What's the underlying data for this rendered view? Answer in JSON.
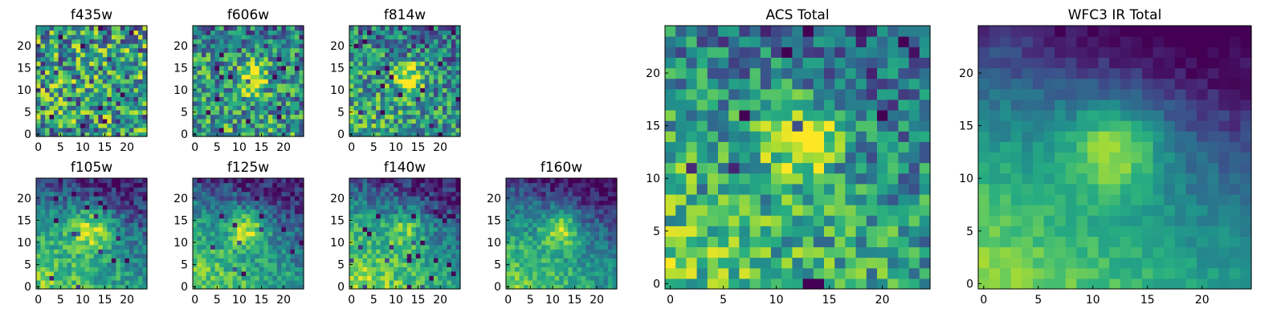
{
  "chart_data": [
    {
      "type": "heatmap",
      "title": "f435w",
      "colormap": "viridis",
      "xlim": [
        0,
        24
      ],
      "ylim": [
        0,
        24
      ],
      "xticks": [
        "0",
        "5",
        "10",
        "15",
        "20"
      ],
      "yticks": [
        "0",
        "5",
        "10",
        "15",
        "20"
      ],
      "grid": false,
      "pattern": {
        "noise": 0.85,
        "blob_amp": 0.0,
        "blob_x": 12,
        "blob_y": 13,
        "blob_r": 4,
        "glow_amp": 0.0,
        "base": 0.55,
        "top_dark": 0.0,
        "seed": 11
      }
    },
    {
      "type": "heatmap",
      "title": "f606w",
      "colormap": "viridis",
      "xlim": [
        0,
        24
      ],
      "ylim": [
        0,
        24
      ],
      "xticks": [
        "0",
        "5",
        "10",
        "15",
        "20"
      ],
      "yticks": [
        "0",
        "5",
        "10",
        "15",
        "20"
      ],
      "grid": false,
      "pattern": {
        "noise": 0.7,
        "blob_amp": 0.45,
        "blob_x": 13,
        "blob_y": 13,
        "blob_r": 2.5,
        "glow_amp": 0.1,
        "base": 0.5,
        "top_dark": 0.1,
        "seed": 23
      }
    },
    {
      "type": "heatmap",
      "title": "f814w",
      "colormap": "viridis",
      "xlim": [
        0,
        24
      ],
      "ylim": [
        0,
        24
      ],
      "xticks": [
        "0",
        "5",
        "10",
        "15",
        "20"
      ],
      "yticks": [
        "0",
        "5",
        "10",
        "15",
        "20"
      ],
      "grid": false,
      "pattern": {
        "noise": 0.65,
        "blob_amp": 0.5,
        "blob_x": 13,
        "blob_y": 13,
        "blob_r": 2.5,
        "glow_amp": 0.2,
        "base": 0.45,
        "top_dark": 0.1,
        "seed": 37
      }
    },
    {
      "type": "heatmap",
      "title": "f105w",
      "colormap": "viridis",
      "xlim": [
        0,
        24
      ],
      "ylim": [
        0,
        24
      ],
      "xticks": [
        "0",
        "5",
        "10",
        "15",
        "20"
      ],
      "yticks": [
        "0",
        "5",
        "10",
        "15",
        "20"
      ],
      "grid": false,
      "pattern": {
        "noise": 0.35,
        "blob_amp": 0.45,
        "blob_x": 12,
        "blob_y": 13,
        "blob_r": 3.5,
        "glow_amp": 0.45,
        "base": 0.35,
        "top_dark": 0.3,
        "seed": 41
      }
    },
    {
      "type": "heatmap",
      "title": "f125w",
      "colormap": "viridis",
      "xlim": [
        0,
        24
      ],
      "ylim": [
        0,
        24
      ],
      "xticks": [
        "0",
        "5",
        "10",
        "15",
        "20"
      ],
      "yticks": [
        "0",
        "5",
        "10",
        "15",
        "20"
      ],
      "grid": false,
      "pattern": {
        "noise": 0.35,
        "blob_amp": 0.45,
        "blob_x": 12,
        "blob_y": 13,
        "blob_r": 3,
        "glow_amp": 0.45,
        "base": 0.35,
        "top_dark": 0.3,
        "seed": 53
      }
    },
    {
      "type": "heatmap",
      "title": "f140w",
      "colormap": "viridis",
      "xlim": [
        0,
        24
      ],
      "ylim": [
        0,
        24
      ],
      "xticks": [
        "0",
        "5",
        "10",
        "15",
        "20"
      ],
      "yticks": [
        "0",
        "5",
        "10",
        "15",
        "20"
      ],
      "grid": false,
      "pattern": {
        "noise": 0.35,
        "blob_amp": 0.3,
        "blob_x": 12,
        "blob_y": 13,
        "blob_r": 3,
        "glow_amp": 0.55,
        "base": 0.35,
        "top_dark": 0.3,
        "seed": 67
      }
    },
    {
      "type": "heatmap",
      "title": "f160w",
      "colormap": "viridis",
      "xlim": [
        0,
        24
      ],
      "ylim": [
        0,
        24
      ],
      "xticks": [
        "0",
        "5",
        "10",
        "15",
        "20"
      ],
      "yticks": [
        "0",
        "5",
        "10",
        "15",
        "20"
      ],
      "grid": false,
      "pattern": {
        "noise": 0.3,
        "blob_amp": 0.45,
        "blob_x": 12,
        "blob_y": 13,
        "blob_r": 3,
        "glow_amp": 0.5,
        "base": 0.32,
        "top_dark": 0.35,
        "seed": 79
      }
    },
    {
      "type": "heatmap",
      "title": "ACS Total",
      "colormap": "viridis",
      "xlim": [
        0,
        24
      ],
      "ylim": [
        0,
        24
      ],
      "xticks": [
        "0",
        "5",
        "10",
        "15",
        "20"
      ],
      "yticks": [
        "0",
        "5",
        "10",
        "15",
        "20"
      ],
      "grid": false,
      "pattern": {
        "noise": 0.55,
        "blob_amp": 0.5,
        "blob_x": 12.5,
        "blob_y": 13.5,
        "blob_r": 2.5,
        "glow_amp": 0.3,
        "base": 0.45,
        "top_dark": 0.15,
        "seed": 97
      }
    },
    {
      "type": "heatmap",
      "title": "WFC3 IR Total",
      "colormap": "viridis",
      "xlim": [
        0,
        24
      ],
      "ylim": [
        0,
        24
      ],
      "xticks": [
        "0",
        "5",
        "10",
        "15",
        "20"
      ],
      "yticks": [
        "0",
        "5",
        "10",
        "15",
        "20"
      ],
      "grid": false,
      "pattern": {
        "noise": 0.15,
        "blob_amp": 0.45,
        "blob_x": 12,
        "blob_y": 13,
        "blob_r": 3,
        "glow_amp": 0.55,
        "base": 0.3,
        "top_dark": 0.4,
        "seed": 113
      }
    }
  ]
}
